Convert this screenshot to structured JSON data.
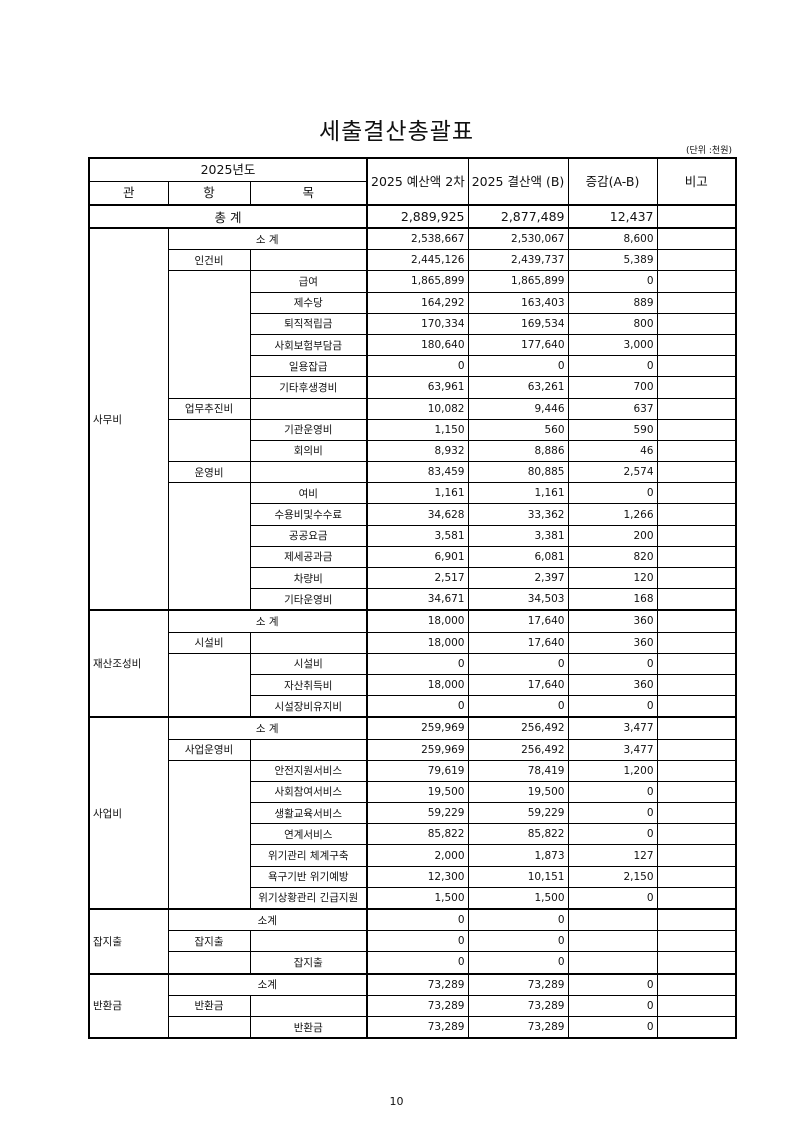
{
  "title": "세출결산총괄표",
  "unit": "(단위 :천원)",
  "header": {
    "year": "2025년도",
    "gwan": "관",
    "hang": "항",
    "mok": "목",
    "col_a": "2025 예산액 2차 추경(A)",
    "col_b": "2025 결산액 (B)",
    "col_diff": "증감(A-B)",
    "col_note": "비고"
  },
  "total": {
    "label": "총 계",
    "a": "2,889,925",
    "b": "2,877,489",
    "diff": "12,437"
  },
  "groups": [
    {
      "gwan": "사무비",
      "rows": [
        {
          "type": "subtotal",
          "label": "소 계",
          "a": "2,538,667",
          "b": "2,530,067",
          "diff": "8,600"
        },
        {
          "type": "hang",
          "label": "인건비",
          "a": "2,445,126",
          "b": "2,439,737",
          "diff": "5,389"
        },
        {
          "type": "mok",
          "label": "급여",
          "a": "1,865,899",
          "b": "1,865,899",
          "diff": "0"
        },
        {
          "type": "mok",
          "label": "제수당",
          "a": "164,292",
          "b": "163,403",
          "diff": "889"
        },
        {
          "type": "mok",
          "label": "퇴직적립금",
          "a": "170,334",
          "b": "169,534",
          "diff": "800"
        },
        {
          "type": "mok",
          "label": "사회보험부담금",
          "a": "180,640",
          "b": "177,640",
          "diff": "3,000"
        },
        {
          "type": "mok",
          "label": "일용잡급",
          "a": "0",
          "b": "0",
          "diff": "0"
        },
        {
          "type": "mok",
          "label": "기타후생경비",
          "a": "63,961",
          "b": "63,261",
          "diff": "700"
        },
        {
          "type": "hang",
          "label": "업무추진비",
          "a": "10,082",
          "b": "9,446",
          "diff": "637"
        },
        {
          "type": "mok",
          "label": "기관운영비",
          "a": "1,150",
          "b": "560",
          "diff": "590"
        },
        {
          "type": "mok",
          "label": "회의비",
          "a": "8,932",
          "b": "8,886",
          "diff": "46"
        },
        {
          "type": "hang",
          "label": "운영비",
          "a": "83,459",
          "b": "80,885",
          "diff": "2,574"
        },
        {
          "type": "mok",
          "label": "여비",
          "a": "1,161",
          "b": "1,161",
          "diff": "0"
        },
        {
          "type": "mok",
          "label": "수용비및수수료",
          "a": "34,628",
          "b": "33,362",
          "diff": "1,266"
        },
        {
          "type": "mok",
          "label": "공공요금",
          "a": "3,581",
          "b": "3,381",
          "diff": "200"
        },
        {
          "type": "mok",
          "label": "제세공과금",
          "a": "6,901",
          "b": "6,081",
          "diff": "820"
        },
        {
          "type": "mok",
          "label": "차량비",
          "a": "2,517",
          "b": "2,397",
          "diff": "120"
        },
        {
          "type": "mok",
          "label": "기타운영비",
          "a": "34,671",
          "b": "34,503",
          "diff": "168"
        }
      ]
    },
    {
      "gwan": "재산조성비",
      "rows": [
        {
          "type": "subtotal",
          "label": "소 계",
          "a": "18,000",
          "b": "17,640",
          "diff": "360"
        },
        {
          "type": "hang",
          "label": "시설비",
          "a": "18,000",
          "b": "17,640",
          "diff": "360"
        },
        {
          "type": "mok",
          "label": "시설비",
          "a": "0",
          "b": "0",
          "diff": "0"
        },
        {
          "type": "mok",
          "label": "자산취득비",
          "a": "18,000",
          "b": "17,640",
          "diff": "360"
        },
        {
          "type": "mok",
          "label": "시설장비유지비",
          "a": "0",
          "b": "0",
          "diff": "0"
        }
      ]
    },
    {
      "gwan": "사업비",
      "rows": [
        {
          "type": "subtotal",
          "label": "소 계",
          "a": "259,969",
          "b": "256,492",
          "diff": "3,477"
        },
        {
          "type": "hang",
          "label": "사업운영비",
          "a": "259,969",
          "b": "256,492",
          "diff": "3,477"
        },
        {
          "type": "mok",
          "label": "안전지원서비스",
          "a": "79,619",
          "b": "78,419",
          "diff": "1,200"
        },
        {
          "type": "mok",
          "label": "사회참여서비스",
          "a": "19,500",
          "b": "19,500",
          "diff": "0"
        },
        {
          "type": "mok",
          "label": "생활교육서비스",
          "a": "59,229",
          "b": "59,229",
          "diff": "0"
        },
        {
          "type": "mok",
          "label": "연계서비스",
          "a": "85,822",
          "b": "85,822",
          "diff": "0"
        },
        {
          "type": "mok",
          "label": "위기관리 체계구축",
          "a": "2,000",
          "b": "1,873",
          "diff": "127"
        },
        {
          "type": "mok",
          "label": "욕구기반 위기예방",
          "a": "12,300",
          "b": "10,151",
          "diff": "2,150"
        },
        {
          "type": "mok",
          "label": "위기상황관리 긴급지원",
          "a": "1,500",
          "b": "1,500",
          "diff": "0"
        }
      ]
    },
    {
      "gwan": "잡지출",
      "rows": [
        {
          "type": "subtotal",
          "label": "소계",
          "a": "0",
          "b": "0",
          "diff": ""
        },
        {
          "type": "hang",
          "label": "잡지출",
          "a": "0",
          "b": "0",
          "diff": ""
        },
        {
          "type": "mok",
          "label": "잡지출",
          "a": "0",
          "b": "0",
          "diff": ""
        }
      ]
    },
    {
      "gwan": "반환금",
      "rows": [
        {
          "type": "subtotal",
          "label": "소계",
          "a": "73,289",
          "b": "73,289",
          "diff": "0"
        },
        {
          "type": "hang",
          "label": "반환금",
          "a": "73,289",
          "b": "73,289",
          "diff": "0"
        },
        {
          "type": "mok",
          "label": "반환금",
          "a": "73,289",
          "b": "73,289",
          "diff": "0"
        }
      ]
    }
  ],
  "page_number": "10"
}
